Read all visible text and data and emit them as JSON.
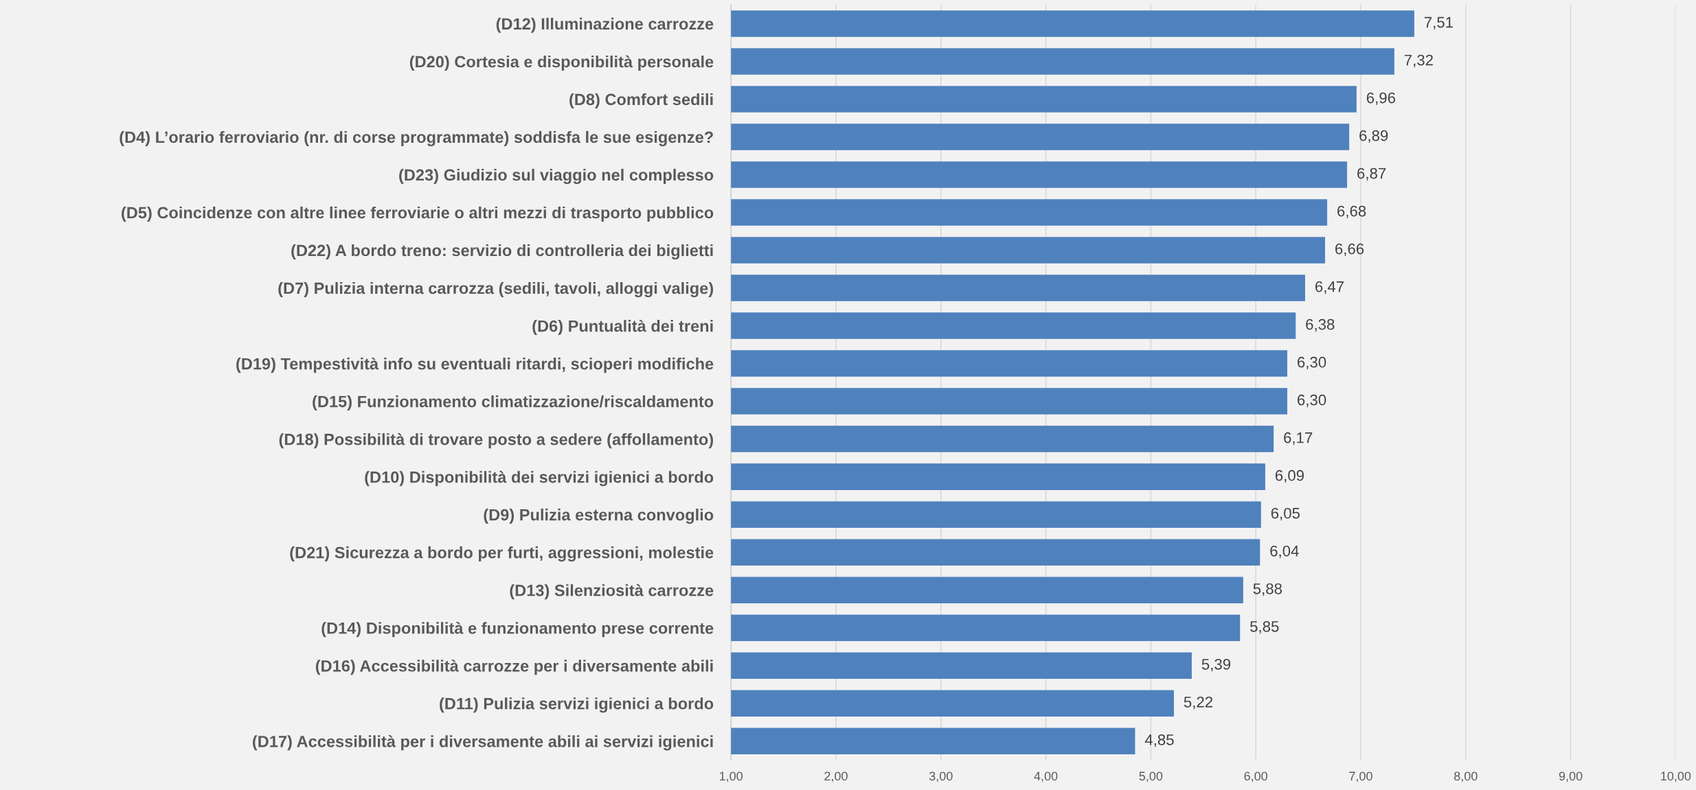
{
  "chart_data": {
    "type": "bar",
    "orientation": "horizontal",
    "categories": [
      "(D12) Illuminazione carrozze",
      "(D20) Cortesia e disponibilità personale",
      "(D8) Comfort sedili",
      "(D4) L’orario ferroviario (nr. di corse programmate) soddisfa le sue esigenze?",
      "(D23) Giudizio sul viaggio nel complesso",
      "(D5) Coincidenze con altre linee ferroviarie o altri mezzi di trasporto pubblico",
      "(D22) A bordo treno: servizio di controlleria dei biglietti",
      "(D7) Pulizia interna carrozza (sedili, tavoli, alloggi valige)",
      "(D6) Puntualità dei treni",
      "(D19) Tempestività info su eventuali ritardi, scioperi modifiche",
      "(D15) Funzionamento climatizzazione/riscaldamento",
      "(D18) Possibilità di trovare posto a sedere (affollamento)",
      "(D10) Disponibilità dei servizi igienici a bordo",
      "(D9) Pulizia esterna convoglio",
      "(D21) Sicurezza a bordo per furti, aggressioni, molestie",
      "(D13) Silenziosità carrozze",
      "(D14) Disponibilità e funzionamento prese corrente",
      "(D16) Accessibilità carrozze per i diversamente abili",
      "(D11) Pulizia servizi igienici a bordo",
      "(D17) Accessibilità per i diversamente abili ai servizi igienici"
    ],
    "values": [
      7.51,
      7.32,
      6.96,
      6.89,
      6.87,
      6.68,
      6.66,
      6.47,
      6.38,
      6.3,
      6.3,
      6.17,
      6.09,
      6.05,
      6.04,
      5.88,
      5.85,
      5.39,
      5.22,
      4.85
    ],
    "value_labels": [
      "7,51",
      "7,32",
      "6,96",
      "6,89",
      "6,87",
      "6,68",
      "6,66",
      "6,47",
      "6,38",
      "6,30",
      "6,30",
      "6,17",
      "6,09",
      "6,05",
      "6,04",
      "5,88",
      "5,85",
      "5,39",
      "5,22",
      "4,85"
    ],
    "color": "#4f81bd",
    "xlim": [
      1,
      10
    ],
    "xticks": [
      {
        "value": 1,
        "label": "1,00"
      },
      {
        "value": 2,
        "label": "2,00"
      },
      {
        "value": 3,
        "label": "3,00"
      },
      {
        "value": 4,
        "label": "4,00"
      },
      {
        "value": 5,
        "label": "5,00"
      },
      {
        "value": 6,
        "label": "6,00"
      },
      {
        "value": 7,
        "label": "7,00"
      },
      {
        "value": 8,
        "label": "8,00"
      },
      {
        "value": 9,
        "label": "9,00"
      },
      {
        "value": 10,
        "label": "10,00"
      }
    ],
    "grid": "x",
    "legend": false
  }
}
